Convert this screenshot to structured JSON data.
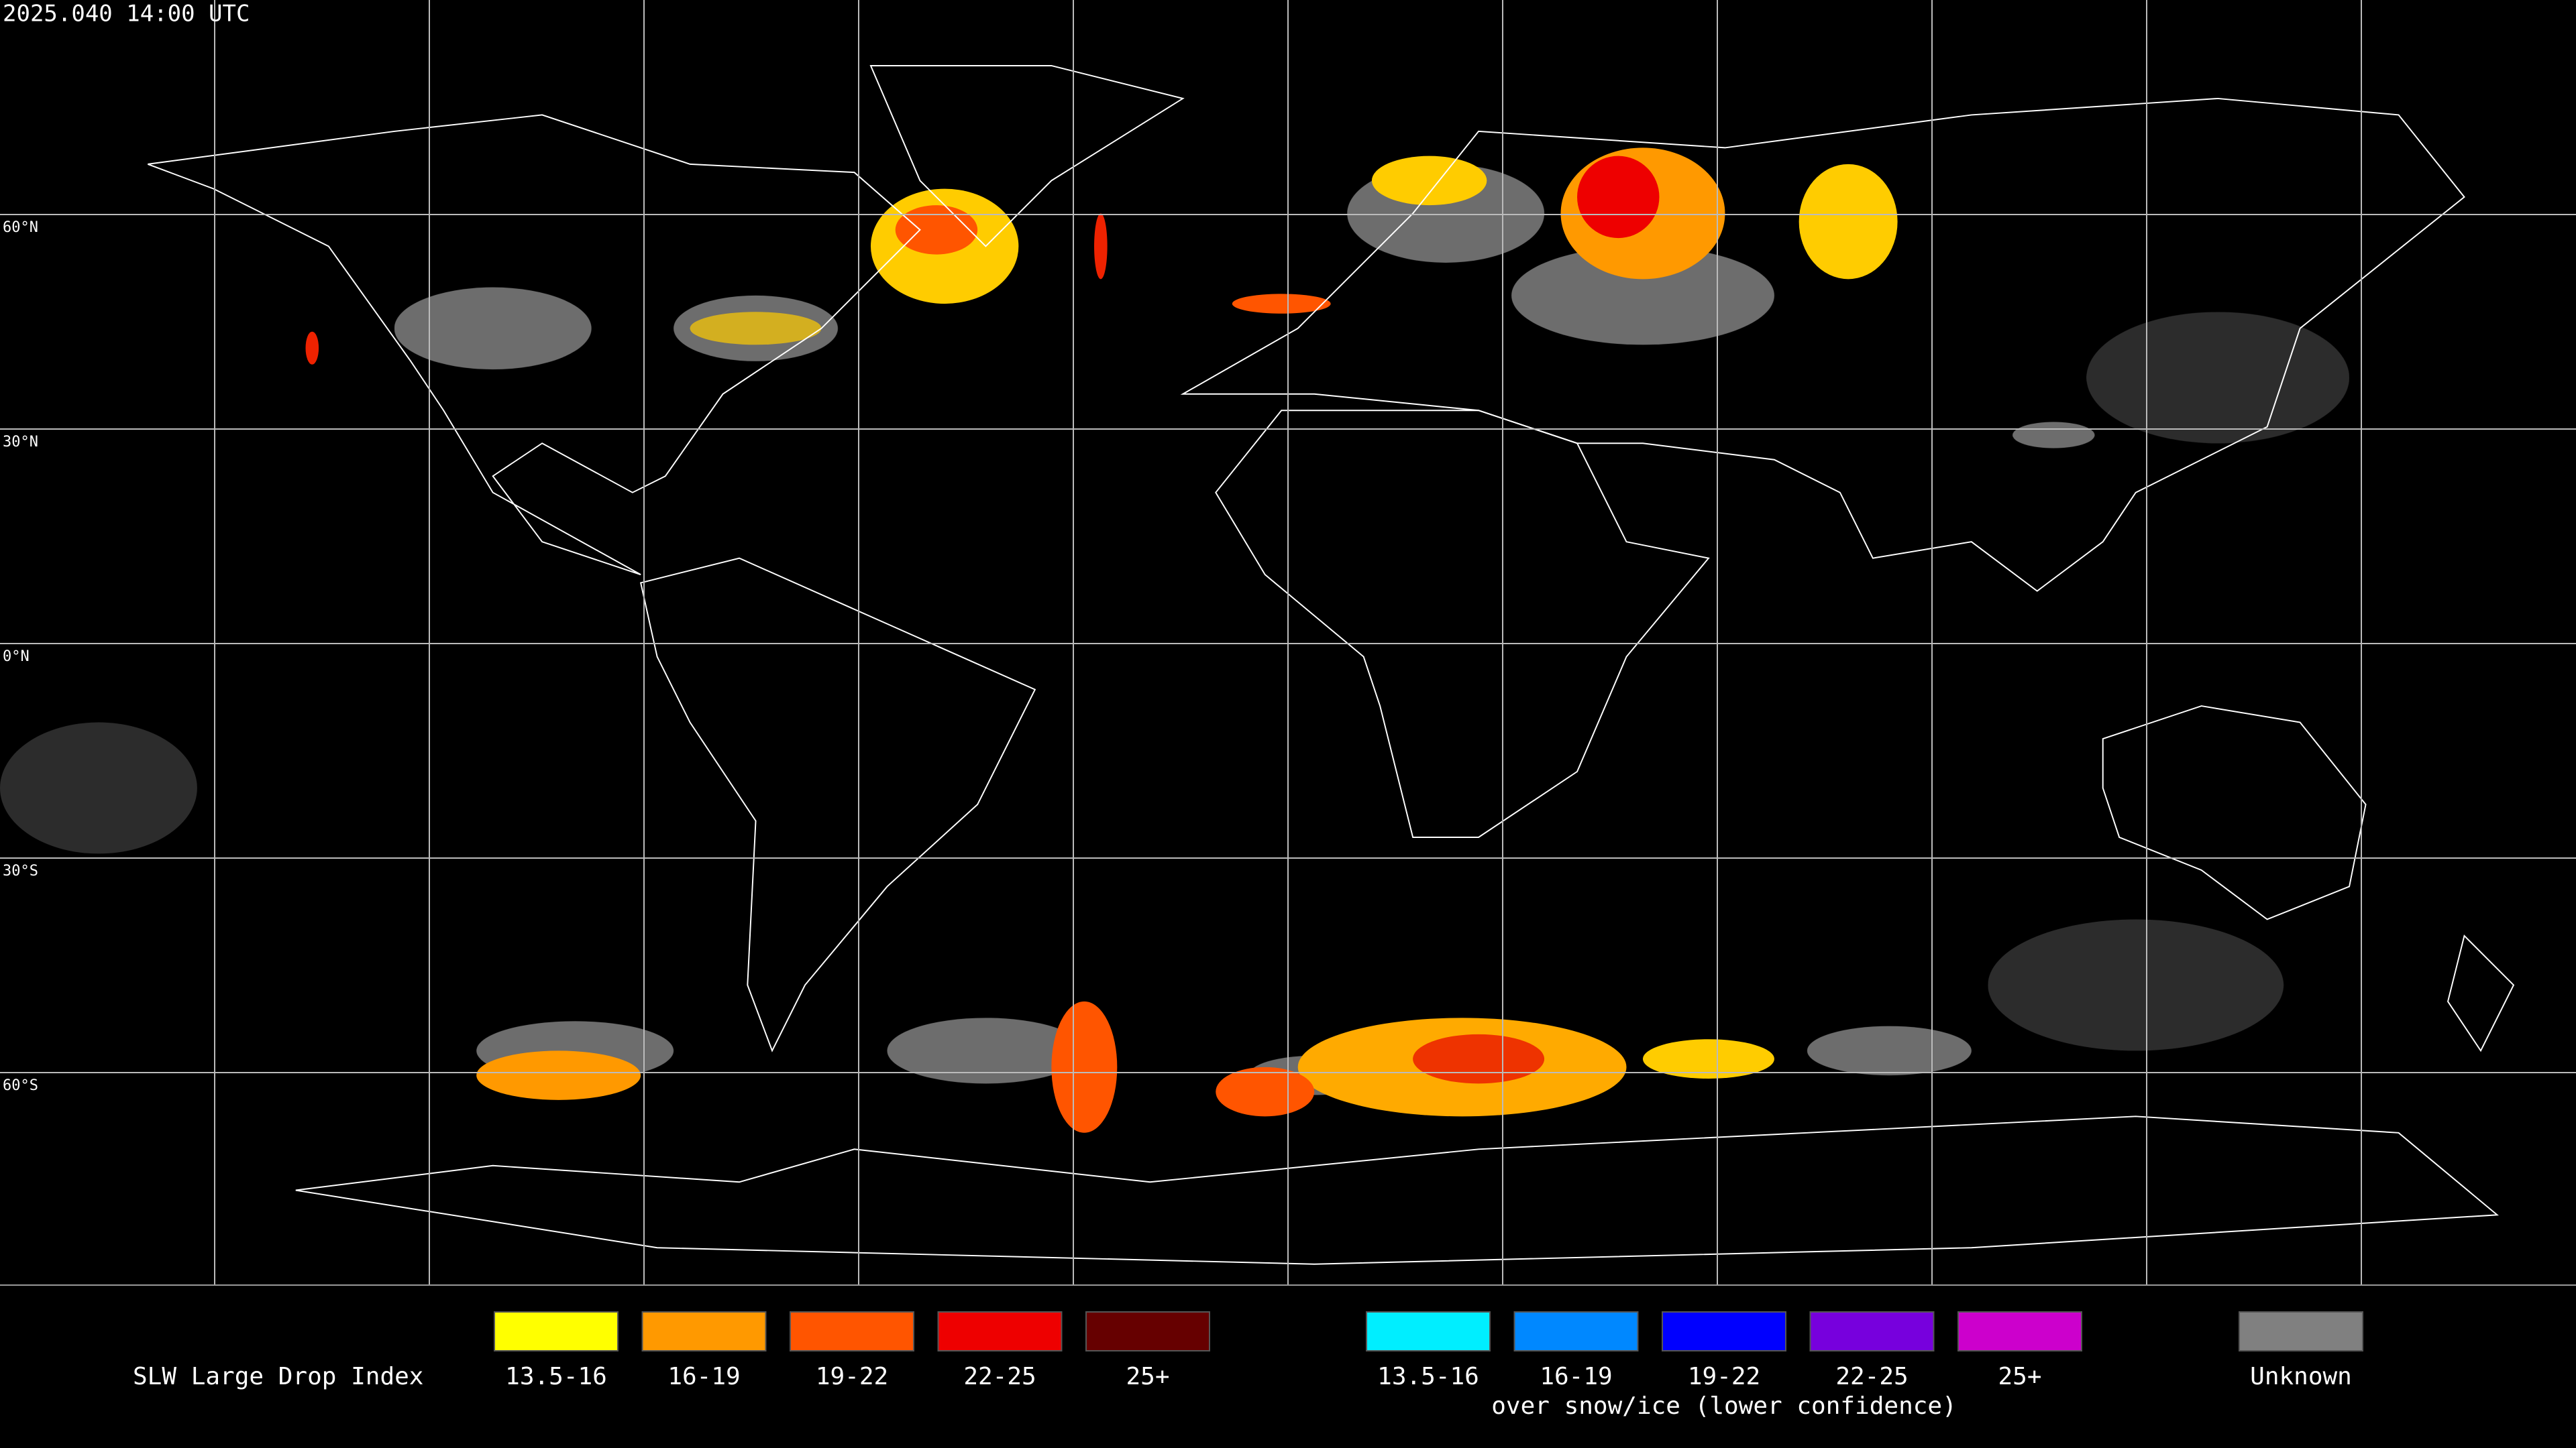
{
  "header": {
    "timestamp": "2025.040 14:00 UTC"
  },
  "map": {
    "latitude_labels": [
      "60°N",
      "30°N",
      "0°N",
      "30°S",
      "60°S"
    ]
  },
  "legend": {
    "title": "SLW Large Drop Index",
    "groups": [
      {
        "items": [
          {
            "label": "13.5-16",
            "color": "#ffff00"
          },
          {
            "label": "16-19",
            "color": "#ff9900"
          },
          {
            "label": "19-22",
            "color": "#ff5500"
          },
          {
            "label": "22-25",
            "color": "#ee0000"
          },
          {
            "label": "25+",
            "color": "#660000"
          }
        ]
      },
      {
        "items": [
          {
            "label": "13.5-16",
            "color": "#00eeff"
          },
          {
            "label": "16-19",
            "color": "#0088ff"
          },
          {
            "label": "19-22",
            "color": "#0000ff"
          },
          {
            "label": "22-25",
            "color": "#7700dd"
          },
          {
            "label": "25+",
            "color": "#cc00cc"
          }
        ],
        "caption": "over snow/ice (lower confidence)"
      },
      {
        "items": [
          {
            "label": "Unknown",
            "color": "#808080"
          }
        ]
      }
    ]
  }
}
